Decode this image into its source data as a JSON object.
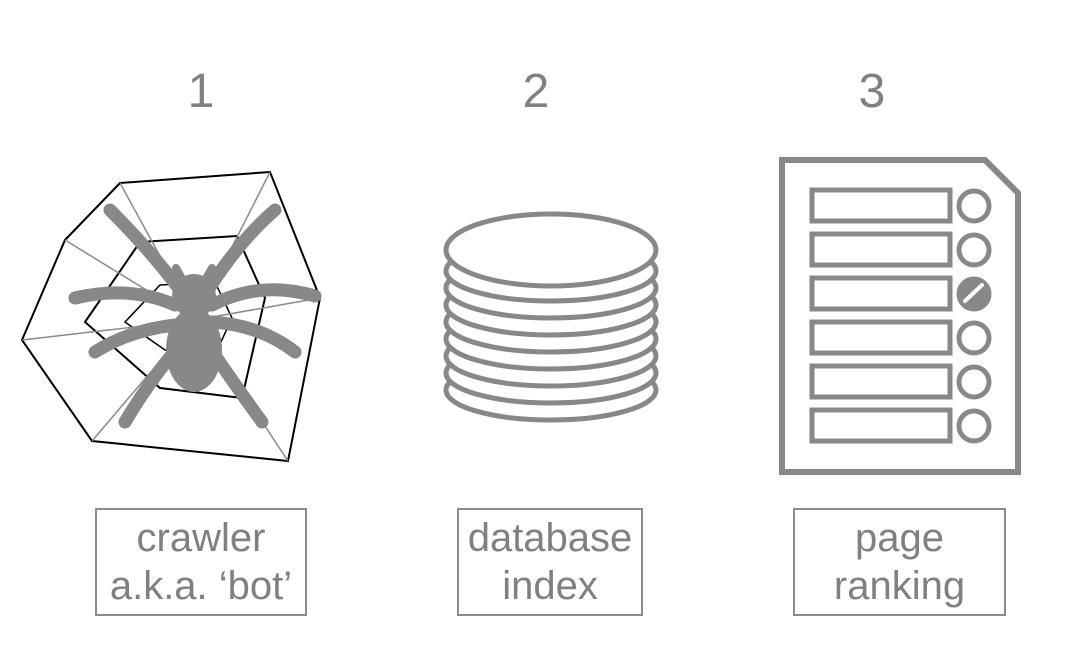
{
  "steps": [
    {
      "number": "1",
      "label_line1": "crawler",
      "label_line2": "a.k.a. ‘bot’",
      "icon": "spider-web-icon"
    },
    {
      "number": "2",
      "label_line1": "database",
      "label_line2": "index",
      "icon": "database-stack-icon"
    },
    {
      "number": "3",
      "label_line1": "page",
      "label_line2": "ranking",
      "icon": "ranked-list-document-icon"
    }
  ],
  "colors": {
    "icon_gray": "#888888",
    "text_gray": "#808080",
    "web_line": "#000000"
  }
}
